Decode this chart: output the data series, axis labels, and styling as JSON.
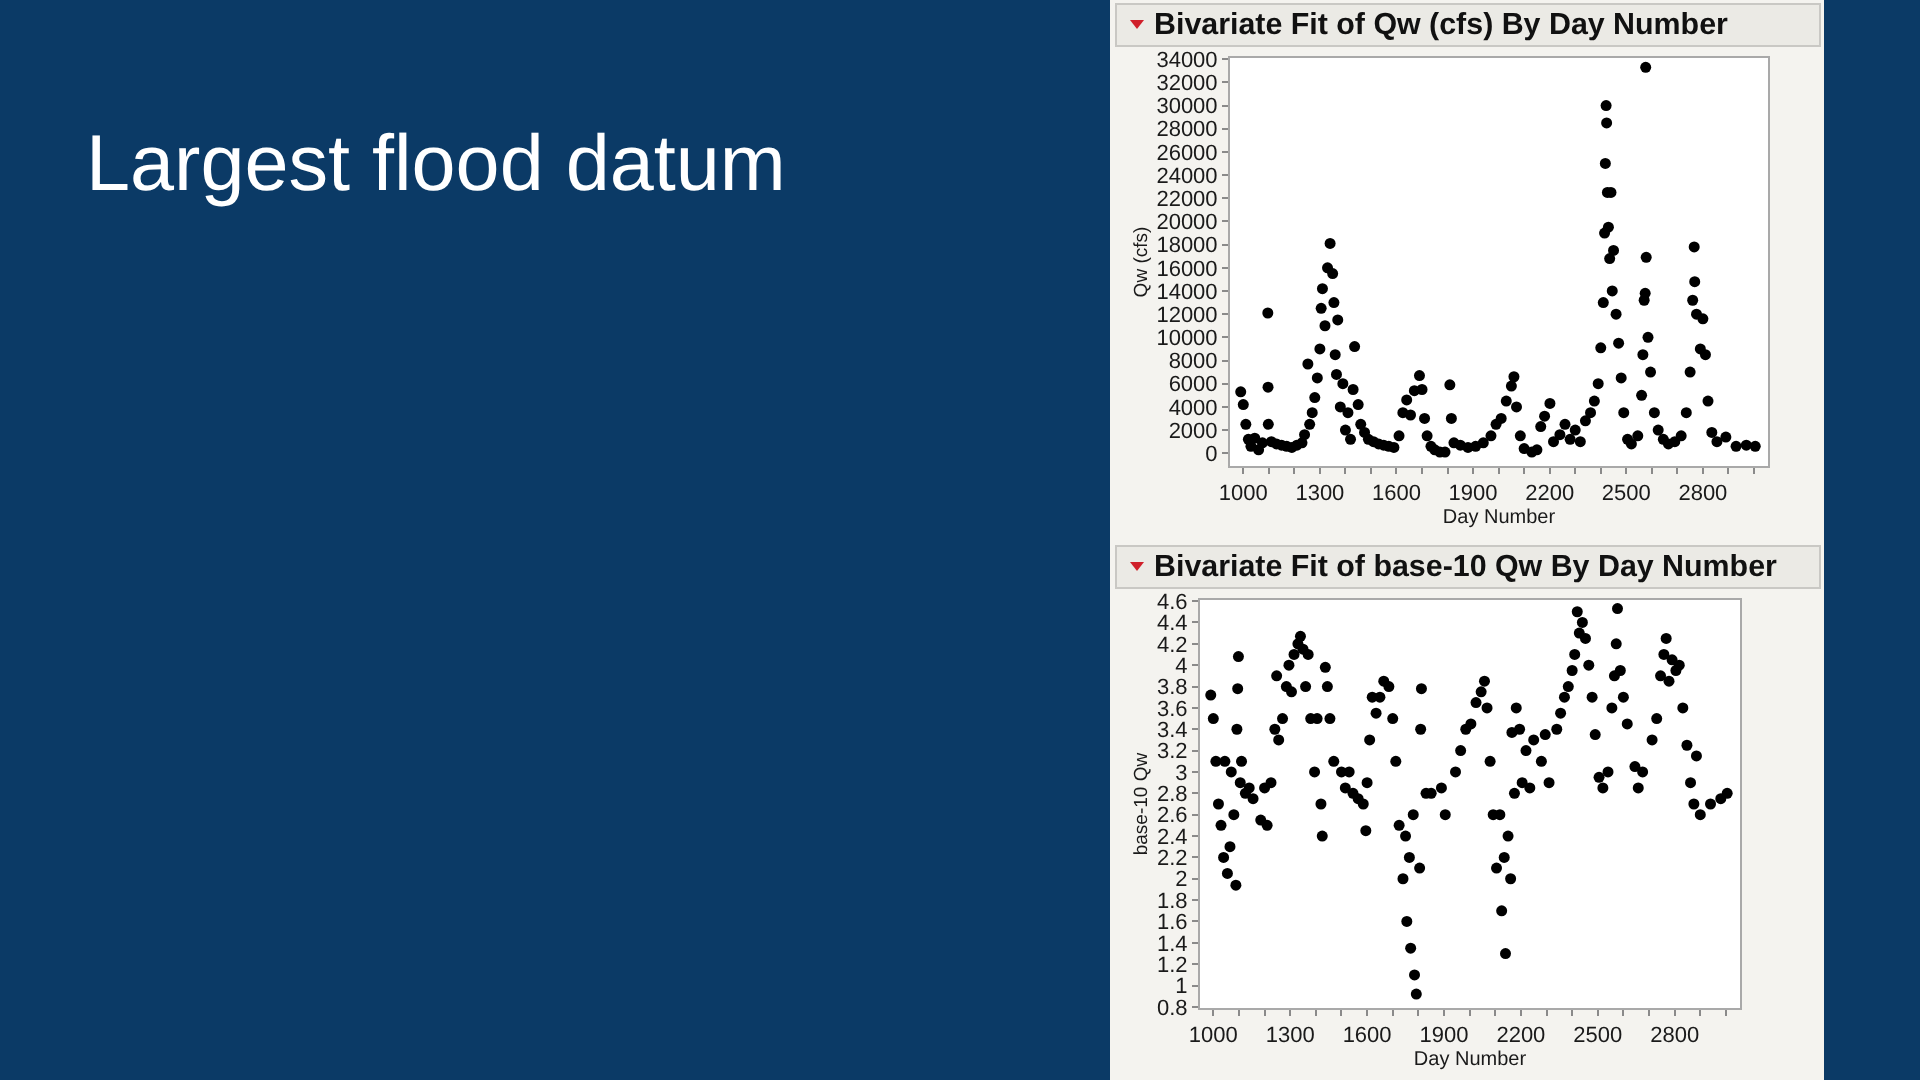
{
  "chart_data": [
    {
      "type": "other",
      "title": "Largest flood datum"
    },
    {
      "type": "scatter",
      "title": "Bivariate Fit of Qw (cfs) By Day Number",
      "xlabel": "Day Number",
      "ylabel": "Qw (cfs)",
      "color": "#000000",
      "marker": "circle",
      "xlim": [
        948,
        3055
      ],
      "xticks": [
        1000,
        {
          "value": 1100,
          "label": null
        },
        {
          "value": 1200,
          "label": null
        },
        1300,
        {
          "value": 1400,
          "label": null
        },
        {
          "value": 1500,
          "label": null
        },
        1600,
        {
          "value": 1700,
          "label": null
        },
        {
          "value": 1800,
          "label": null
        },
        1900,
        {
          "value": 2000,
          "label": null
        },
        {
          "value": 2100,
          "label": null
        },
        2200,
        {
          "value": 2300,
          "label": null
        },
        {
          "value": 2400,
          "label": null
        },
        2500,
        {
          "value": 2600,
          "label": null
        },
        {
          "value": 2700,
          "label": null
        },
        2800,
        {
          "value": 2900,
          "label": null
        },
        {
          "value": 3000,
          "label": null
        }
      ],
      "ylim": [
        -1100,
        34100
      ],
      "yticks": [
        0,
        2000,
        4000,
        6000,
        8000,
        10000,
        12000,
        14000,
        16000,
        18000,
        20000,
        22000,
        24000,
        26000,
        28000,
        30000,
        32000,
        34000
      ],
      "x": [
        990,
        1000,
        1010,
        1020,
        1030,
        1045,
        1060,
        1075,
        1096,
        1097,
        1098,
        1110,
        1130,
        1150,
        1170,
        1190,
        1210,
        1230,
        1240,
        1253,
        1260,
        1270,
        1280,
        1290,
        1300,
        1305,
        1310,
        1320,
        1330,
        1340,
        1350,
        1355,
        1360,
        1365,
        1370,
        1380,
        1390,
        1400,
        1410,
        1420,
        1430,
        1436,
        1450,
        1460,
        1475,
        1490,
        1510,
        1530,
        1550,
        1570,
        1590,
        1610,
        1625,
        1640,
        1655,
        1670,
        1690,
        1700,
        1710,
        1720,
        1735,
        1750,
        1770,
        1790,
        1809,
        1815,
        1825,
        1850,
        1880,
        1910,
        1940,
        1970,
        1990,
        2010,
        2030,
        2050,
        2060,
        2070,
        2085,
        2100,
        2130,
        2150,
        2165,
        2180,
        2201,
        2215,
        2240,
        2260,
        2280,
        2300,
        2320,
        2340,
        2360,
        2375,
        2390,
        2400,
        2410,
        2415,
        2418,
        2421,
        2423,
        2426,
        2430,
        2435,
        2440,
        2445,
        2450,
        2460,
        2470,
        2480,
        2490,
        2505,
        2520,
        2545,
        2560,
        2565,
        2570,
        2574,
        2576,
        2578,
        2585,
        2595,
        2610,
        2625,
        2645,
        2665,
        2690,
        2715,
        2735,
        2750,
        2760,
        2766,
        2768,
        2775,
        2790,
        2800,
        2810,
        2820,
        2835,
        2855,
        2890,
        2930,
        2970,
        3005
      ],
      "values": [
        5300,
        4200,
        2500,
        1200,
        600,
        1300,
        300,
        900,
        12100,
        5700,
        2500,
        1000,
        800,
        700,
        600,
        500,
        700,
        900,
        1600,
        7700,
        2500,
        3500,
        4800,
        6500,
        9000,
        12500,
        14200,
        11000,
        16000,
        18100,
        15500,
        13000,
        8500,
        6800,
        11500,
        4000,
        6000,
        2000,
        3500,
        1200,
        5500,
        9200,
        4200,
        2500,
        1800,
        1200,
        1000,
        800,
        700,
        600,
        500,
        1500,
        3500,
        4600,
        3300,
        5400,
        6700,
        5500,
        3000,
        1500,
        600,
        300,
        100,
        100,
        5900,
        3000,
        900,
        700,
        500,
        600,
        900,
        1500,
        2500,
        3000,
        4500,
        5800,
        6600,
        4000,
        1500,
        400,
        100,
        300,
        2300,
        3200,
        4300,
        1000,
        1600,
        2500,
        1200,
        2000,
        1000,
        2800,
        3500,
        4500,
        6000,
        9100,
        13000,
        19000,
        25000,
        30000,
        28500,
        22500,
        19500,
        16800,
        22500,
        14000,
        17500,
        12000,
        9500,
        6500,
        3500,
        1200,
        800,
        1500,
        5000,
        8500,
        13200,
        13800,
        33300,
        16900,
        10000,
        7000,
        3500,
        2000,
        1200,
        800,
        1000,
        1500,
        3500,
        7000,
        13200,
        17800,
        14800,
        12000,
        9000,
        11600,
        8500,
        4500,
        1800,
        1000,
        1400,
        600,
        700,
        600
      ]
    },
    {
      "type": "scatter",
      "title": "Bivariate Fit of base-10 Qw By Day Number",
      "xlabel": "Day Number",
      "ylabel": "base-10 Qw",
      "color": "#000000",
      "marker": "circle",
      "xlim": [
        948,
        3055
      ],
      "xticks": [
        1000,
        {
          "value": 1100,
          "label": null
        },
        {
          "value": 1200,
          "label": null
        },
        1300,
        {
          "value": 1400,
          "label": null
        },
        {
          "value": 1500,
          "label": null
        },
        1600,
        {
          "value": 1700,
          "label": null
        },
        {
          "value": 1800,
          "label": null
        },
        1900,
        {
          "value": 2000,
          "label": null
        },
        {
          "value": 2100,
          "label": null
        },
        2200,
        {
          "value": 2300,
          "label": null
        },
        {
          "value": 2400,
          "label": null
        },
        2500,
        {
          "value": 2600,
          "label": null
        },
        {
          "value": 2700,
          "label": null
        },
        2800,
        {
          "value": 2900,
          "label": null
        },
        {
          "value": 3000,
          "label": null
        }
      ],
      "ylim": [
        0.79,
        4.61
      ],
      "yticks": [
        0.8,
        1,
        1.2,
        1.4,
        1.6,
        1.8,
        2,
        2.2,
        2.4,
        2.6,
        2.8,
        3,
        3.2,
        3.4,
        3.6,
        3.8,
        4,
        4.2,
        4.4,
        4.6
      ],
      "x": [
        990,
        1000,
        1010,
        1020,
        1030,
        1040,
        1045,
        1055,
        1065,
        1070,
        1080,
        1088,
        1092,
        1095,
        1098,
        1105,
        1110,
        1125,
        1140,
        1155,
        1185,
        1200,
        1210,
        1225,
        1240,
        1247,
        1255,
        1270,
        1285,
        1295,
        1305,
        1315,
        1330,
        1340,
        1350,
        1360,
        1370,
        1380,
        1395,
        1405,
        1425,
        1420,
        1437,
        1445,
        1455,
        1470,
        1500,
        1515,
        1530,
        1545,
        1595,
        1565,
        1585,
        1600,
        1610,
        1620,
        1635,
        1650,
        1665,
        1685,
        1700,
        1712,
        1725,
        1740,
        1750,
        1755,
        1765,
        1770,
        1780,
        1785,
        1792,
        1805,
        1809,
        1812,
        1830,
        1850,
        1890,
        1905,
        1945,
        1965,
        1985,
        2005,
        2025,
        2045,
        2058,
        2068,
        2080,
        2092,
        2105,
        2118,
        2125,
        2135,
        2140,
        2150,
        2160,
        2165,
        2175,
        2182,
        2195,
        2205,
        2220,
        2235,
        2250,
        2280,
        2295,
        2310,
        2340,
        2355,
        2370,
        2385,
        2400,
        2410,
        2420,
        2428,
        2440,
        2452,
        2465,
        2478,
        2490,
        2505,
        2520,
        2540,
        2555,
        2565,
        2572,
        2577,
        2588,
        2600,
        2615,
        2645,
        2658,
        2675,
        2712,
        2730,
        2745,
        2758,
        2767,
        2778,
        2790,
        2805,
        2818,
        2832,
        2848,
        2862,
        2875,
        2885,
        2900,
        2940,
        2980,
        3005
      ],
      "values": [
        3.72,
        3.5,
        3.1,
        2.7,
        2.5,
        2.2,
        3.1,
        2.05,
        2.3,
        3.0,
        2.6,
        1.94,
        3.4,
        3.78,
        4.08,
        2.9,
        3.1,
        2.8,
        2.85,
        2.75,
        2.55,
        2.85,
        2.5,
        2.9,
        3.4,
        3.9,
        3.3,
        3.5,
        3.8,
        4.0,
        3.75,
        4.1,
        4.2,
        4.27,
        4.15,
        3.8,
        4.1,
        3.5,
        3.0,
        3.5,
        2.4,
        2.7,
        3.98,
        3.8,
        3.5,
        3.1,
        3.0,
        2.85,
        3.0,
        2.8,
        2.45,
        2.75,
        2.7,
        2.9,
        3.3,
        3.7,
        3.55,
        3.7,
        3.85,
        3.8,
        3.5,
        3.1,
        2.5,
        2.0,
        2.4,
        1.6,
        2.2,
        1.35,
        2.6,
        1.1,
        0.92,
        2.1,
        3.4,
        3.78,
        2.8,
        2.8,
        2.85,
        2.6,
        3.0,
        3.2,
        3.4,
        3.45,
        3.65,
        3.75,
        3.85,
        3.6,
        3.1,
        2.6,
        2.1,
        2.6,
        1.7,
        2.2,
        1.3,
        2.4,
        2.0,
        3.37,
        2.8,
        3.6,
        3.4,
        2.9,
        3.2,
        2.85,
        3.3,
        3.1,
        3.35,
        2.9,
        3.4,
        3.55,
        3.7,
        3.8,
        3.95,
        4.1,
        4.5,
        4.3,
        4.4,
        4.25,
        4.0,
        3.7,
        3.35,
        2.95,
        2.85,
        3.0,
        3.6,
        3.9,
        4.2,
        4.53,
        3.95,
        3.7,
        3.45,
        3.05,
        2.85,
        3.0,
        3.3,
        3.5,
        3.9,
        4.1,
        4.25,
        3.85,
        4.05,
        3.95,
        4.0,
        3.6,
        3.25,
        2.9,
        2.7,
        3.15,
        2.6,
        2.7,
        2.75,
        2.8
      ]
    }
  ]
}
